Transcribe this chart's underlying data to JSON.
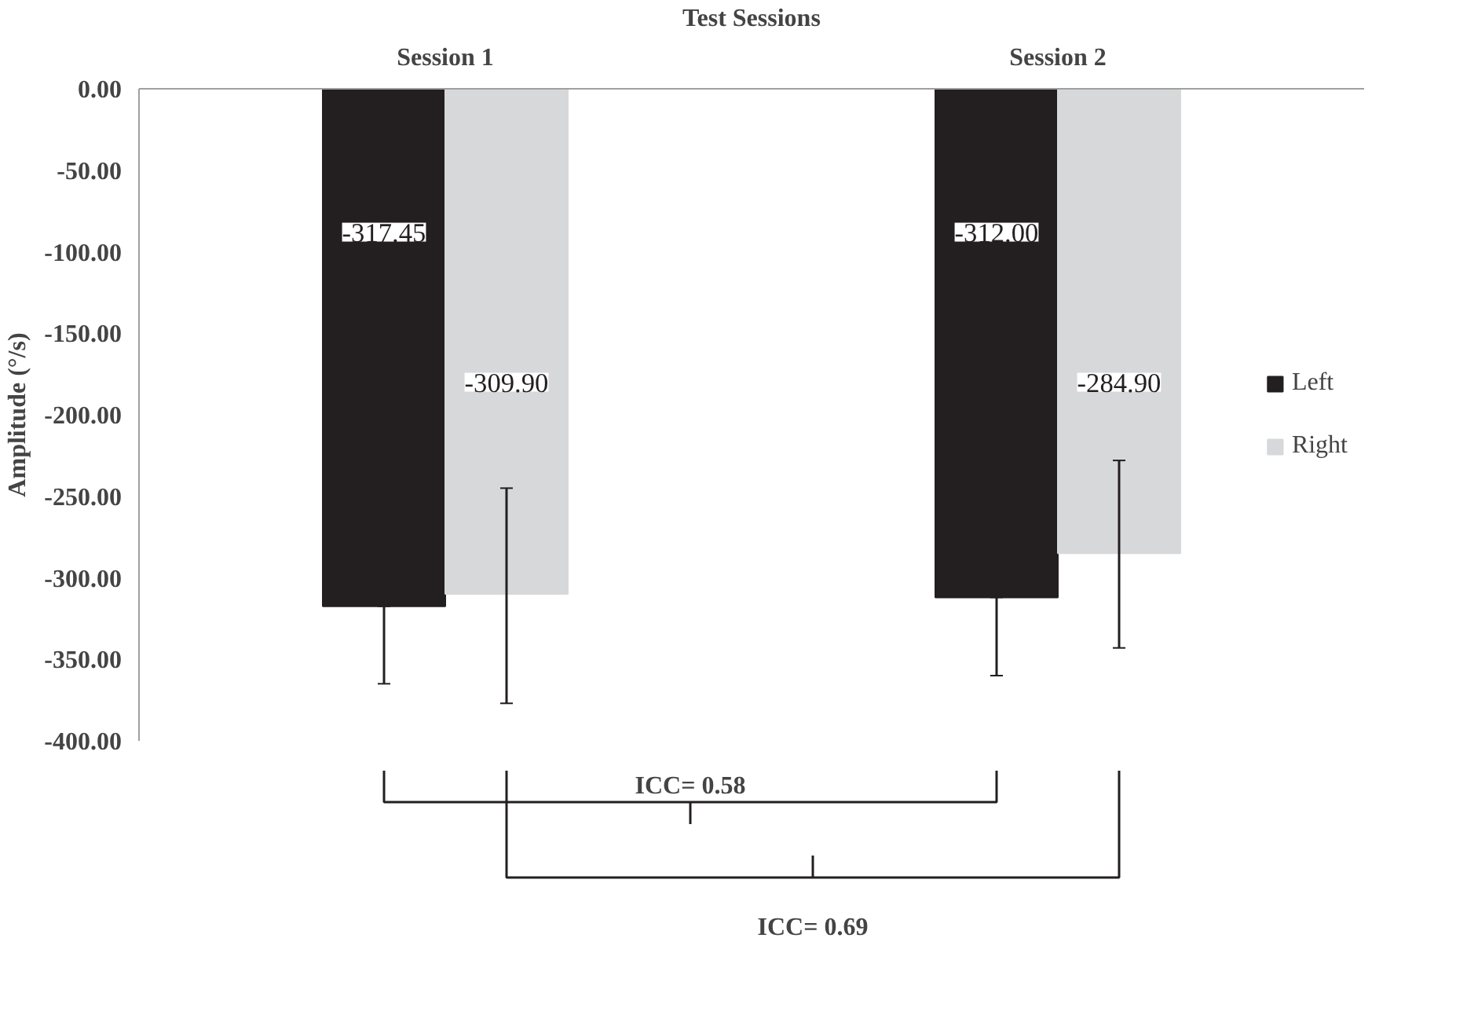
{
  "chart_data": {
    "type": "bar",
    "xlabel": "Test Sessions",
    "ylabel": "Amplitude (°/s)",
    "categories": [
      "Session 1",
      "Session 2"
    ],
    "series": [
      {
        "name": "Left",
        "color": "#231f20",
        "values": [
          -317.45,
          -312.0
        ],
        "value_labels": [
          "-317.45",
          "-312.00"
        ],
        "errors": [
          [
            -365,
            -317.45
          ],
          [
            -360,
            -312.0
          ]
        ]
      },
      {
        "name": "Right",
        "color": "#d7d8da",
        "values": [
          -309.9,
          -284.9
        ],
        "value_labels": [
          "-309.90",
          "-284.90"
        ],
        "errors": [
          [
            -377,
            -245
          ],
          [
            -343,
            -228
          ]
        ]
      }
    ],
    "ylim": [
      -400,
      0
    ],
    "yticks": [
      {
        "value": 0,
        "label": "0.00"
      },
      {
        "value": -50,
        "label": "-50.00"
      },
      {
        "value": -100,
        "label": "-100.00"
      },
      {
        "value": -150,
        "label": "-150.00"
      },
      {
        "value": -200,
        "label": "-200.00"
      },
      {
        "value": -250,
        "label": "-250.00"
      },
      {
        "value": -300,
        "label": "-300.00"
      },
      {
        "value": -350,
        "label": "-350.00"
      },
      {
        "value": -400,
        "label": "-400.00"
      }
    ],
    "legend": "right",
    "grid": false,
    "annotations": [
      "ICC= 0.58",
      "ICC= 0.69"
    ]
  }
}
